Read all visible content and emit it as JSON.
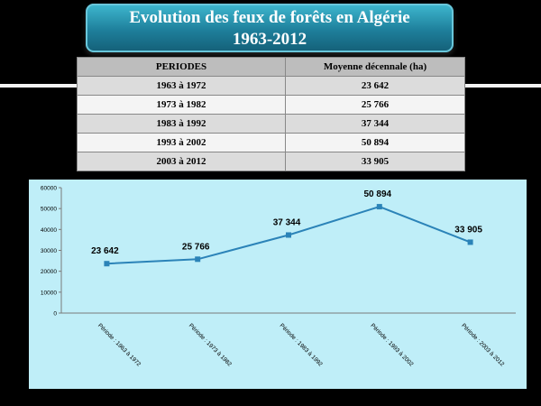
{
  "title": {
    "line1": "Evolution des feux de forêts en Algérie",
    "line2": "1963-2012"
  },
  "table": {
    "headers": [
      "PERIODES",
      "Moyenne décennale (ha)"
    ],
    "rows": [
      [
        "1963 à 1972",
        "23 642"
      ],
      [
        "1973 à 1982",
        "25 766"
      ],
      [
        "1983 à 1992",
        "37 344"
      ],
      [
        "1993 à 2002",
        "50 894"
      ],
      [
        "2003 à 2012",
        "33 905"
      ]
    ]
  },
  "colors": {
    "line": "#2b83b8",
    "chart_bg": "#bfeef8",
    "title_bg": "#1e7f9b"
  },
  "chart_data": {
    "type": "line",
    "categories": [
      "Période : 1963 à 1972",
      "Période : 1973 à 1982",
      "Période : 1983 à 1992",
      "Période : 1993 à 2002",
      "Période : 2003 à 2012"
    ],
    "series": [
      {
        "values": [
          23642,
          25766,
          37344,
          50894,
          33905
        ]
      }
    ],
    "data_labels": [
      "23 642",
      "25 766",
      "37 344",
      "50 894",
      "33 905"
    ],
    "yticks": [
      0,
      10000,
      20000,
      30000,
      40000,
      50000,
      60000
    ],
    "ylim": [
      0,
      60000
    ],
    "marker": "square",
    "legend": "none",
    "grid": false
  }
}
